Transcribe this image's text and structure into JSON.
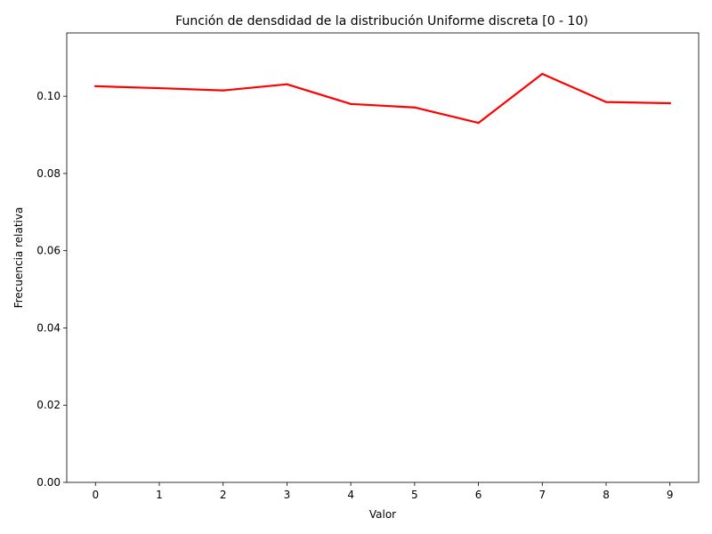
{
  "chart_data": {
    "type": "line",
    "title": "Función de densdidad de la distribución Uniforme discreta [0 - 10)",
    "xlabel": "Valor",
    "ylabel": "Frecuencia relativa",
    "x": [
      0,
      1,
      2,
      3,
      4,
      5,
      6,
      7,
      8,
      9
    ],
    "series": [
      {
        "color": "#ff0000",
        "values": [
          0.1026,
          0.1021,
          0.1015,
          0.1031,
          0.098,
          0.0971,
          0.0931,
          0.1058,
          0.0985,
          0.0982
        ]
      }
    ],
    "xlim": [
      -0.45,
      9.45
    ],
    "ylim": [
      0,
      0.1164
    ],
    "xticks": [
      "0",
      "1",
      "2",
      "3",
      "4",
      "5",
      "6",
      "7",
      "8",
      "9"
    ],
    "yticks": [
      "0.00",
      "0.02",
      "0.04",
      "0.06",
      "0.08",
      "0.10"
    ],
    "grid": false,
    "legend": "none"
  }
}
